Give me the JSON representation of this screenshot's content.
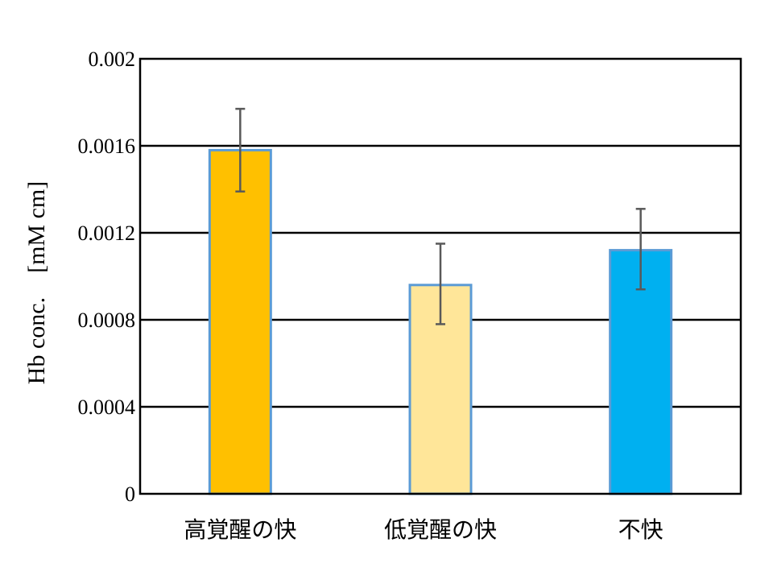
{
  "chart_data": {
    "type": "bar",
    "title": "",
    "xlabel": "",
    "ylabel": "Hb conc.　[mM cm]",
    "ylim": [
      0,
      0.002
    ],
    "yticks": [
      0,
      0.0004,
      0.0008,
      0.0012,
      0.0016,
      0.002
    ],
    "ytick_labels": [
      "0",
      "0.0004",
      "0.0008",
      "0.0012",
      "0.0016",
      "0.002"
    ],
    "grid": true,
    "legend": "none",
    "categories": [
      "高覚醒の快",
      "低覚醒の快",
      "不快"
    ],
    "values": [
      0.00158,
      0.00096,
      0.00112
    ],
    "error_upper": [
      0.00177,
      0.00115,
      0.00131
    ],
    "error_lower": [
      0.00139,
      0.00078,
      0.00094
    ],
    "colors": [
      "#FFC000",
      "#FFE699",
      "#00B0F0"
    ],
    "bar_edge_color": "#5B9BD5",
    "error_color": "#595959"
  }
}
